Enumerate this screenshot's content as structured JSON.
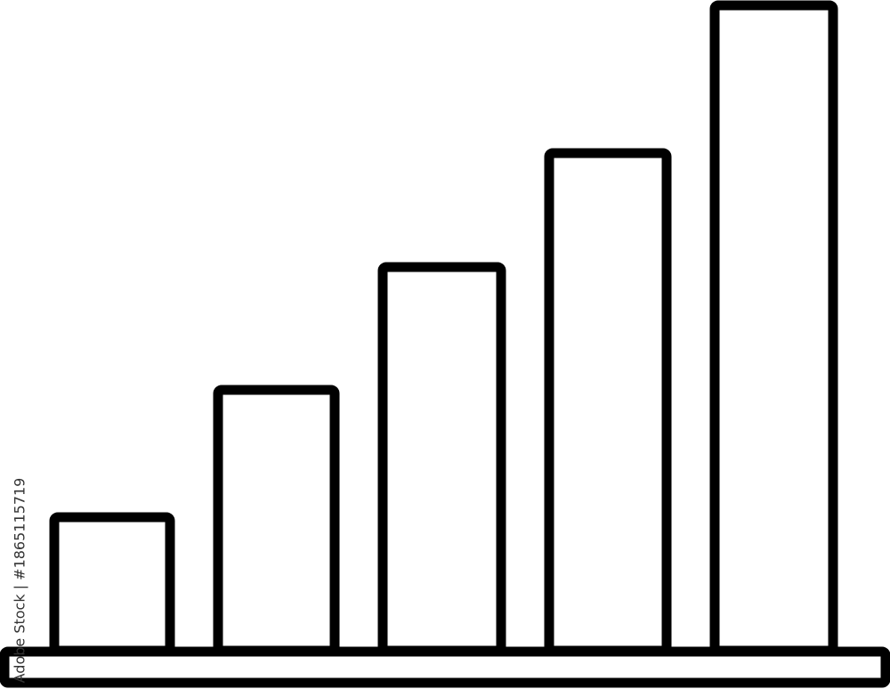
{
  "illustration": {
    "subject": "bar-graph-icon",
    "stroke_color": "#000000",
    "fill_color": "#ffffff",
    "bar_count": 5
  },
  "watermark": {
    "text": "Adobe Stock | #1865115719"
  }
}
